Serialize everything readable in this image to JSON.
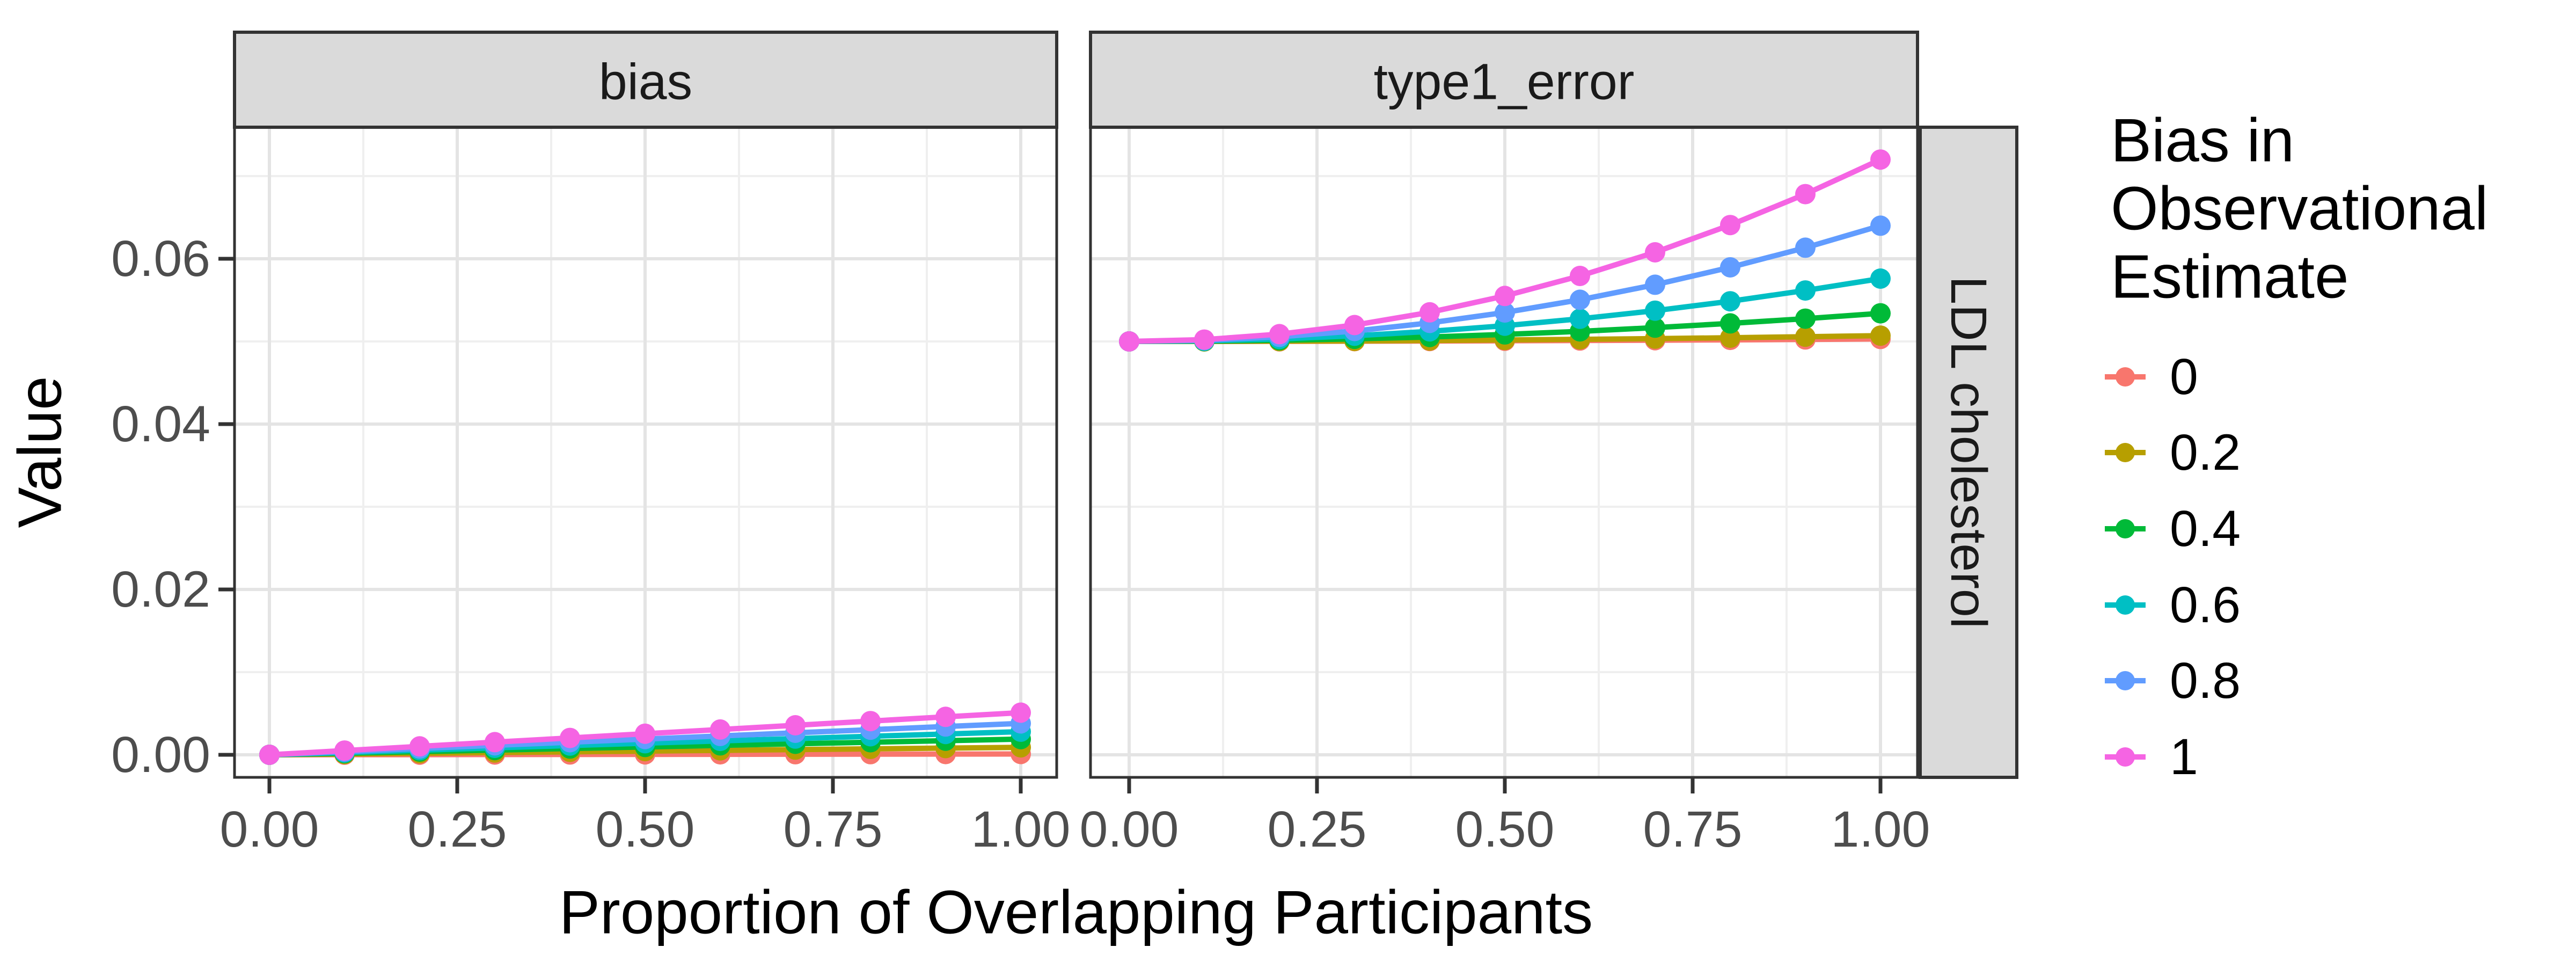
{
  "figure": {
    "x_axis_title": "Proportion of Overlapping Participants",
    "y_axis_title": "Value",
    "col_facets": [
      "bias",
      "type1_error"
    ],
    "row_facet": "LDL cholesterol",
    "x_tick_labels": [
      "0.00",
      "0.25",
      "0.50",
      "0.75",
      "1.00"
    ],
    "y_tick_labels": [
      "0.00",
      "0.02",
      "0.04",
      "0.06"
    ],
    "legend": {
      "title_lines": [
        "Bias in",
        "Observational",
        "Estimate"
      ],
      "entries": [
        "0",
        "0.2",
        "0.4",
        "0.6",
        "0.8",
        "1"
      ]
    },
    "colors": {
      "background": "#FFFFFF",
      "strip_bg": "#DADADA",
      "panel_border": "#333333",
      "grid_major": "#E4E4E4",
      "grid_minor": "#EFEFEF",
      "tick_label": "#4D4D4D",
      "title_text": "#000000",
      "strip_text": "#1A1A1A"
    }
  },
  "chart_data": {
    "type": "line",
    "title": "",
    "xlabel": "Proportion of Overlapping Participants",
    "ylabel": "Value",
    "facets": [
      "bias",
      "type1_error"
    ],
    "row_facet": "LDL cholesterol",
    "legend_title": "Bias in Observational Estimate",
    "legend_position": "right",
    "grid": true,
    "x": [
      0,
      0.1,
      0.2,
      0.3,
      0.4,
      0.5,
      0.6,
      0.7,
      0.8,
      0.9,
      1.0
    ],
    "x_ticks": [
      0,
      0.25,
      0.5,
      0.75,
      1.0
    ],
    "x_minor": [
      0.125,
      0.375,
      0.625,
      0.875
    ],
    "y_ticks": [
      0,
      0.02,
      0.04,
      0.06
    ],
    "y_minor": [
      0.01,
      0.03,
      0.05,
      0.07
    ],
    "xlim": [
      -0.05,
      1.05
    ],
    "ylim": [
      -0.0027,
      0.0757
    ],
    "series": [
      {
        "name": "0",
        "color": "#F8766D",
        "bias": [
          0,
          1e-05,
          2e-05,
          3e-05,
          4e-05,
          5e-05,
          6e-05,
          7e-05,
          8e-05,
          9e-05,
          0.0001
        ],
        "type1_error": [
          0.05,
          0.05,
          0.05001,
          0.05003,
          0.05005,
          0.05008,
          0.05011,
          0.05015,
          0.05019,
          0.05024,
          0.0503
        ]
      },
      {
        "name": "0.2",
        "color": "#B79F00",
        "bias": [
          0,
          9e-05,
          0.00018,
          0.00027,
          0.00036,
          0.00045,
          0.00054,
          0.00063,
          0.00072,
          0.00081,
          0.0009
        ],
        "type1_error": [
          0.05,
          0.05001,
          0.05003,
          0.05006,
          0.05011,
          0.05018,
          0.05025,
          0.05034,
          0.05045,
          0.05057,
          0.0507
        ]
      },
      {
        "name": "0.4",
        "color": "#00BA38",
        "bias": [
          0,
          0.00019,
          0.00038,
          0.00057,
          0.00076,
          0.00095,
          0.00114,
          0.00133,
          0.00152,
          0.00171,
          0.0019
        ],
        "type1_error": [
          0.05,
          0.05003,
          0.05014,
          0.05031,
          0.05054,
          0.05085,
          0.05122,
          0.05167,
          0.05218,
          0.05275,
          0.0534
        ]
      },
      {
        "name": "0.6",
        "color": "#00BFC4",
        "bias": [
          0,
          0.00028,
          0.00056,
          0.00084,
          0.00112,
          0.0014,
          0.00168,
          0.00196,
          0.00224,
          0.00252,
          0.0028
        ],
        "type1_error": [
          0.05,
          0.05008,
          0.0503,
          0.05068,
          0.05122,
          0.0519,
          0.05274,
          0.05372,
          0.05486,
          0.05616,
          0.0576
        ]
      },
      {
        "name": "0.8",
        "color": "#619CFF",
        "bias": [
          0,
          0.00038,
          0.00076,
          0.00114,
          0.00152,
          0.0019,
          0.00228,
          0.00266,
          0.00304,
          0.00342,
          0.0038
        ],
        "type1_error": [
          0.05,
          0.05014,
          0.05056,
          0.05126,
          0.05224,
          0.0535,
          0.05504,
          0.05686,
          0.05896,
          0.06134,
          0.064
        ]
      },
      {
        "name": "1",
        "color": "#F564E3",
        "bias": [
          0,
          0.00051,
          0.00102,
          0.00153,
          0.00204,
          0.00255,
          0.00306,
          0.00357,
          0.00408,
          0.00459,
          0.0051
        ],
        "type1_error": [
          0.05,
          0.05022,
          0.05088,
          0.05198,
          0.05352,
          0.0555,
          0.05792,
          0.06078,
          0.06408,
          0.06782,
          0.072
        ]
      }
    ]
  }
}
